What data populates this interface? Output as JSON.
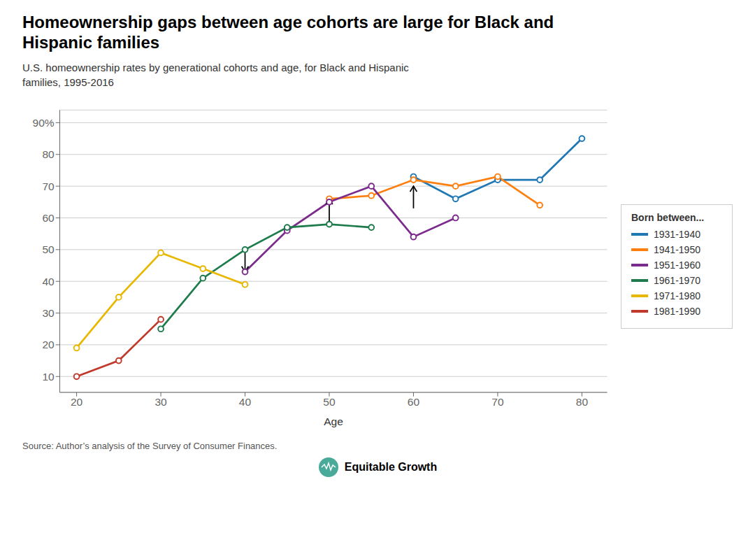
{
  "chart_data": {
    "type": "line",
    "title": "Homeownership gaps between age cohorts are large for Black and\nHispanic families",
    "subtitle": "U.S. homeownership rates by generational cohorts and age, for Black and Hispanic\nfamilies, 1995-2016",
    "x_label": "Age",
    "source": "Source: Author’s analysis of the Survey of Consumer Finances.",
    "annotations": [
      "Equitable Growth"
    ],
    "legend_title": "Born between...",
    "legend": "right",
    "grid": true,
    "marker": "circle",
    "series": [
      {
        "name": "1931-1940",
        "color": "#1f77b4",
        "x": [
          60,
          65,
          70,
          75,
          80
        ],
        "values": [
          73,
          66,
          72,
          72,
          85
        ]
      },
      {
        "name": "1941-1950",
        "color": "#ff7f0e",
        "x": [
          50,
          55,
          60,
          65,
          70,
          75
        ],
        "values": [
          66,
          67,
          72,
          70,
          73,
          64
        ]
      },
      {
        "name": "1951-1960",
        "color": "#7b2b8b",
        "x": [
          40,
          45,
          50,
          55,
          60,
          65
        ],
        "values": [
          43,
          56,
          65,
          70,
          54,
          60
        ]
      },
      {
        "name": "1961-1970",
        "color": "#1e7b4b",
        "x": [
          30,
          35,
          40,
          45,
          50,
          55
        ],
        "values": [
          25,
          41,
          50,
          57,
          58,
          57
        ]
      },
      {
        "name": "1971-1980",
        "color": "#e8b800",
        "x": [
          20,
          25,
          30,
          35,
          40
        ],
        "values": [
          19,
          35,
          49,
          44,
          39
        ]
      },
      {
        "name": "1981-1990",
        "color": "#c0392b",
        "x": [
          20,
          25,
          30
        ],
        "values": [
          10,
          15,
          28
        ]
      }
    ],
    "arrows": [
      {
        "x": 40,
        "y_from": 50,
        "y_to": 43
      },
      {
        "x": 50,
        "y_from": 59,
        "y_to": 66
      },
      {
        "x": 60,
        "y_from": 63,
        "y_to": 70
      }
    ],
    "xlim": [
      18,
      83
    ],
    "xticks": [
      20,
      30,
      40,
      50,
      60,
      70,
      80
    ],
    "ylim": [
      5,
      94
    ],
    "yticks": [
      10,
      20,
      30,
      40,
      50,
      60,
      70,
      80,
      {
        "value": 90,
        "label": "90%"
      }
    ]
  }
}
